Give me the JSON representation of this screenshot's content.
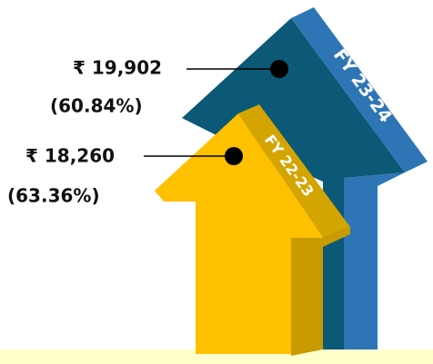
{
  "labels": [
    {
      "value": "₹ 19,902",
      "percent": "(60.84%)",
      "year": "FY 23-24"
    },
    {
      "value": "₹ 18,260",
      "percent": "(63.36%)",
      "year": "FY 22-23"
    }
  ]
}
